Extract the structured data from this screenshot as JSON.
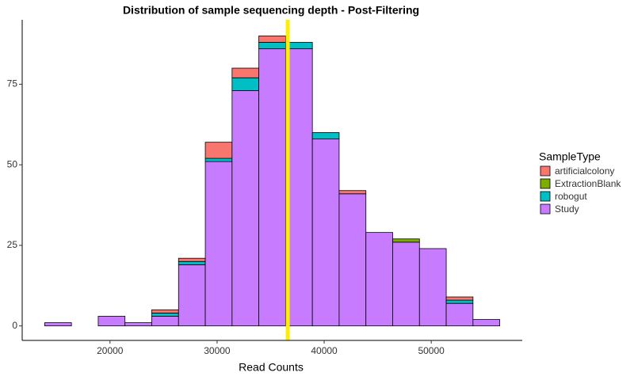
{
  "chart_data": {
    "type": "histogram",
    "title": "Distribution of sample sequencing depth - Post-Filtering",
    "x_label": "Read Counts",
    "legend_title": "SampleType",
    "bins": [
      13900,
      16400,
      18900,
      21400,
      23900,
      26400,
      28900,
      31400,
      33900,
      36400,
      38900,
      41400,
      43900,
      46400,
      48900,
      51400,
      53900,
      56400
    ],
    "series": [
      {
        "name": "artificialcolony",
        "color": "#F8766D",
        "values": [
          0,
          0,
          0,
          0,
          1,
          1,
          5,
          3,
          2,
          0,
          0,
          1,
          0,
          0,
          0,
          1,
          0
        ]
      },
      {
        "name": "ExtractionBlank",
        "color": "#7CAE00",
        "values": [
          0,
          0,
          0,
          0,
          0,
          0,
          0,
          0,
          0,
          0,
          0,
          0,
          0,
          1,
          0,
          0,
          0
        ]
      },
      {
        "name": "robogut",
        "color": "#00BFC4",
        "values": [
          0,
          0,
          0,
          0,
          1,
          1,
          1,
          4,
          2,
          2,
          2,
          0,
          0,
          0,
          0,
          1,
          0
        ]
      },
      {
        "name": "Study",
        "color": "#C77CFF",
        "values": [
          1,
          0,
          3,
          1,
          3,
          19,
          51,
          73,
          86,
          86,
          58,
          41,
          29,
          26,
          24,
          7,
          2
        ]
      }
    ],
    "vline": 36600,
    "vline_color": "#FFEE00",
    "xlim": [
      11800,
      58500
    ],
    "xticks": [
      20000,
      30000,
      40000,
      50000
    ],
    "ylim": [
      -4.5,
      95
    ],
    "yticks": [
      0,
      25,
      50,
      75
    ],
    "grid": false,
    "legend": "right"
  }
}
